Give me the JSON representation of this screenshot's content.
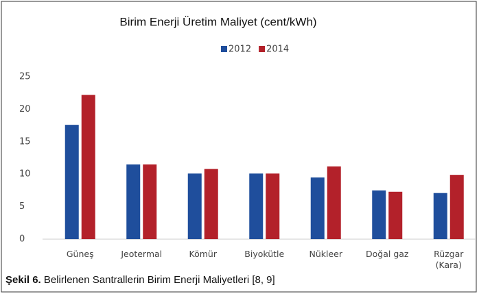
{
  "chart_data": {
    "type": "bar",
    "title": "Birim Enerji Üretim Maliyet (cent/kWh)",
    "categories": [
      "Güneş",
      "Jeotermal",
      "Kömür",
      "Biyokütle",
      "Nükleer",
      "Doğal gaz",
      "Rüzgar (Kara)"
    ],
    "series": [
      {
        "name": "2012",
        "color": "#1f4e9c",
        "values": [
          17.6,
          11.5,
          10.1,
          10.1,
          9.5,
          7.5,
          7.1
        ]
      },
      {
        "name": "2014",
        "color": "#b3212a",
        "values": [
          22.2,
          11.5,
          10.8,
          10.1,
          11.2,
          7.3,
          9.9
        ]
      }
    ],
    "ylim": [
      0,
      25
    ],
    "yticks": [
      0,
      5,
      10,
      15,
      20,
      25
    ],
    "grid": false,
    "legend": "top"
  },
  "caption": {
    "label": "Şekil 6.",
    "text": "Belirlenen Santrallerin Birim Enerji Maliyetleri [8, 9]"
  }
}
